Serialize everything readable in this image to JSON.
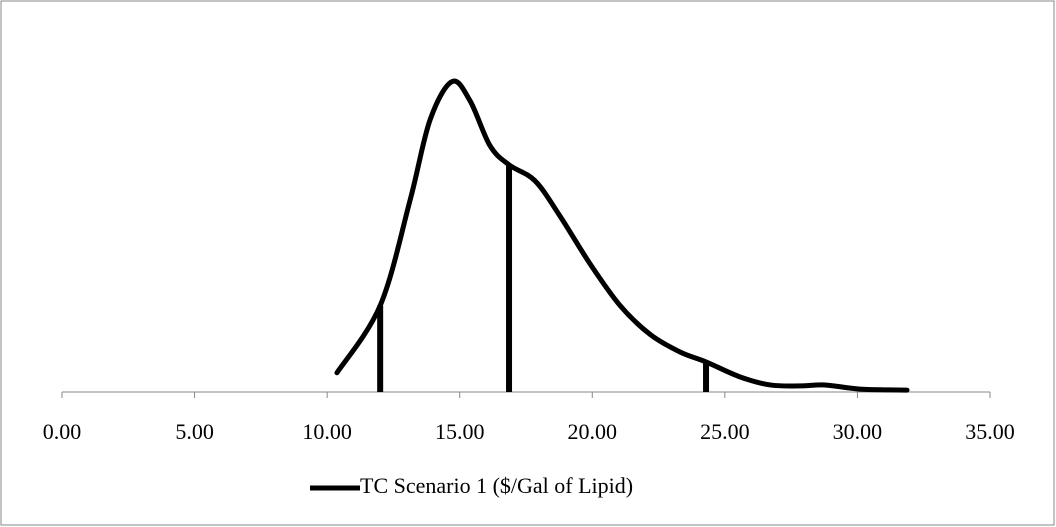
{
  "chart_data": {
    "type": "line",
    "series": [
      {
        "name": "TC Scenario 1 ($/Gal of Lipid)",
        "color": "#000000",
        "x": [
          10.37,
          12.0,
          13.13,
          13.88,
          14.71,
          15.39,
          16.14,
          16.86,
          17.84,
          18.78,
          19.92,
          21.05,
          22.18,
          23.31,
          24.29,
          25.58,
          26.71,
          27.84,
          28.78,
          30.1,
          31.87
        ],
        "values": [
          0.06,
          0.27,
          0.6,
          0.85,
          0.97,
          0.91,
          0.77,
          0.71,
          0.66,
          0.55,
          0.4,
          0.27,
          0.18,
          0.125,
          0.094,
          0.047,
          0.022,
          0.019,
          0.022,
          0.009,
          0.006
        ]
      }
    ],
    "markers": {
      "x": [
        12.0,
        16.86,
        24.29
      ],
      "values": [
        0.27,
        0.71,
        0.094
      ]
    },
    "xlim": [
      0,
      35
    ],
    "xticks": [
      {
        "value": 0,
        "label": "0.00"
      },
      {
        "value": 5,
        "label": "5.00"
      },
      {
        "value": 10,
        "label": "10.00"
      },
      {
        "value": 15,
        "label": "15.00"
      },
      {
        "value": 20,
        "label": "20.00"
      },
      {
        "value": 25,
        "label": "25.00"
      },
      {
        "value": 30,
        "label": "30.00"
      },
      {
        "value": 35,
        "label": "35.00"
      }
    ],
    "ylim": [
      0,
      1
    ]
  }
}
